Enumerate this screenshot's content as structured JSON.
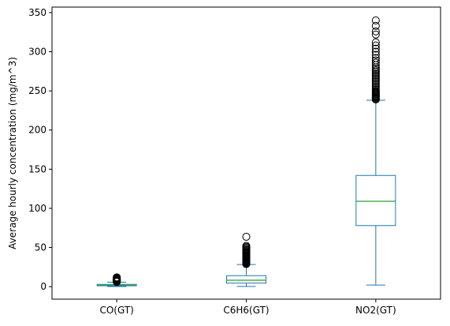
{
  "chart_data": {
    "type": "box",
    "title": "",
    "xlabel": "",
    "ylabel": "Average hourly concentration (mg/m^3)",
    "ylim": [
      -16,
      357
    ],
    "yticks": [
      0,
      50,
      100,
      150,
      200,
      250,
      300,
      350
    ],
    "grid": false,
    "colors": {
      "box": "#1f77b4",
      "median": "#2ca02c",
      "flier": "#000000"
    },
    "categories": [
      "CO(GT)",
      "C6H6(GT)",
      "NO2(GT)"
    ],
    "boxes": [
      {
        "label": "CO(GT)",
        "whisker_low": 0.1,
        "q1": 1.1,
        "median": 1.8,
        "q3": 2.9,
        "whisker_high": 5.7,
        "outliers": [
          6.0,
          6.4,
          6.8,
          7.2,
          7.6,
          8.0,
          8.4,
          8.8,
          9.2,
          9.6,
          10.0,
          10.5,
          11.0,
          11.5,
          11.9
        ]
      },
      {
        "label": "C6H6(GT)",
        "whisker_low": 0.2,
        "q1": 4.5,
        "median": 8.2,
        "q3": 14.0,
        "whisker_high": 28.2,
        "outliers": [
          28.8,
          29.5,
          30.2,
          31.0,
          31.8,
          32.6,
          33.4,
          34.2,
          35.0,
          35.8,
          36.6,
          37.4,
          38.2,
          39.0,
          40.0,
          41.0,
          42.0,
          43.0,
          44.0,
          45.0,
          46.0,
          47.0,
          48.2,
          49.5,
          50.8,
          52.0,
          63.7
        ]
      },
      {
        "label": "NO2(GT)",
        "whisker_low": 2,
        "q1": 78,
        "median": 109,
        "q3": 142,
        "whisker_high": 238,
        "outliers": [
          239,
          240,
          241,
          242,
          243,
          244,
          245,
          246,
          247,
          248,
          249,
          250,
          252,
          254,
          256,
          258,
          260,
          262,
          264,
          266,
          268,
          270,
          272,
          274,
          276,
          278,
          280,
          283,
          286,
          289,
          292,
          296,
          300,
          304,
          308,
          312,
          322,
          326,
          333,
          340
        ]
      }
    ]
  }
}
